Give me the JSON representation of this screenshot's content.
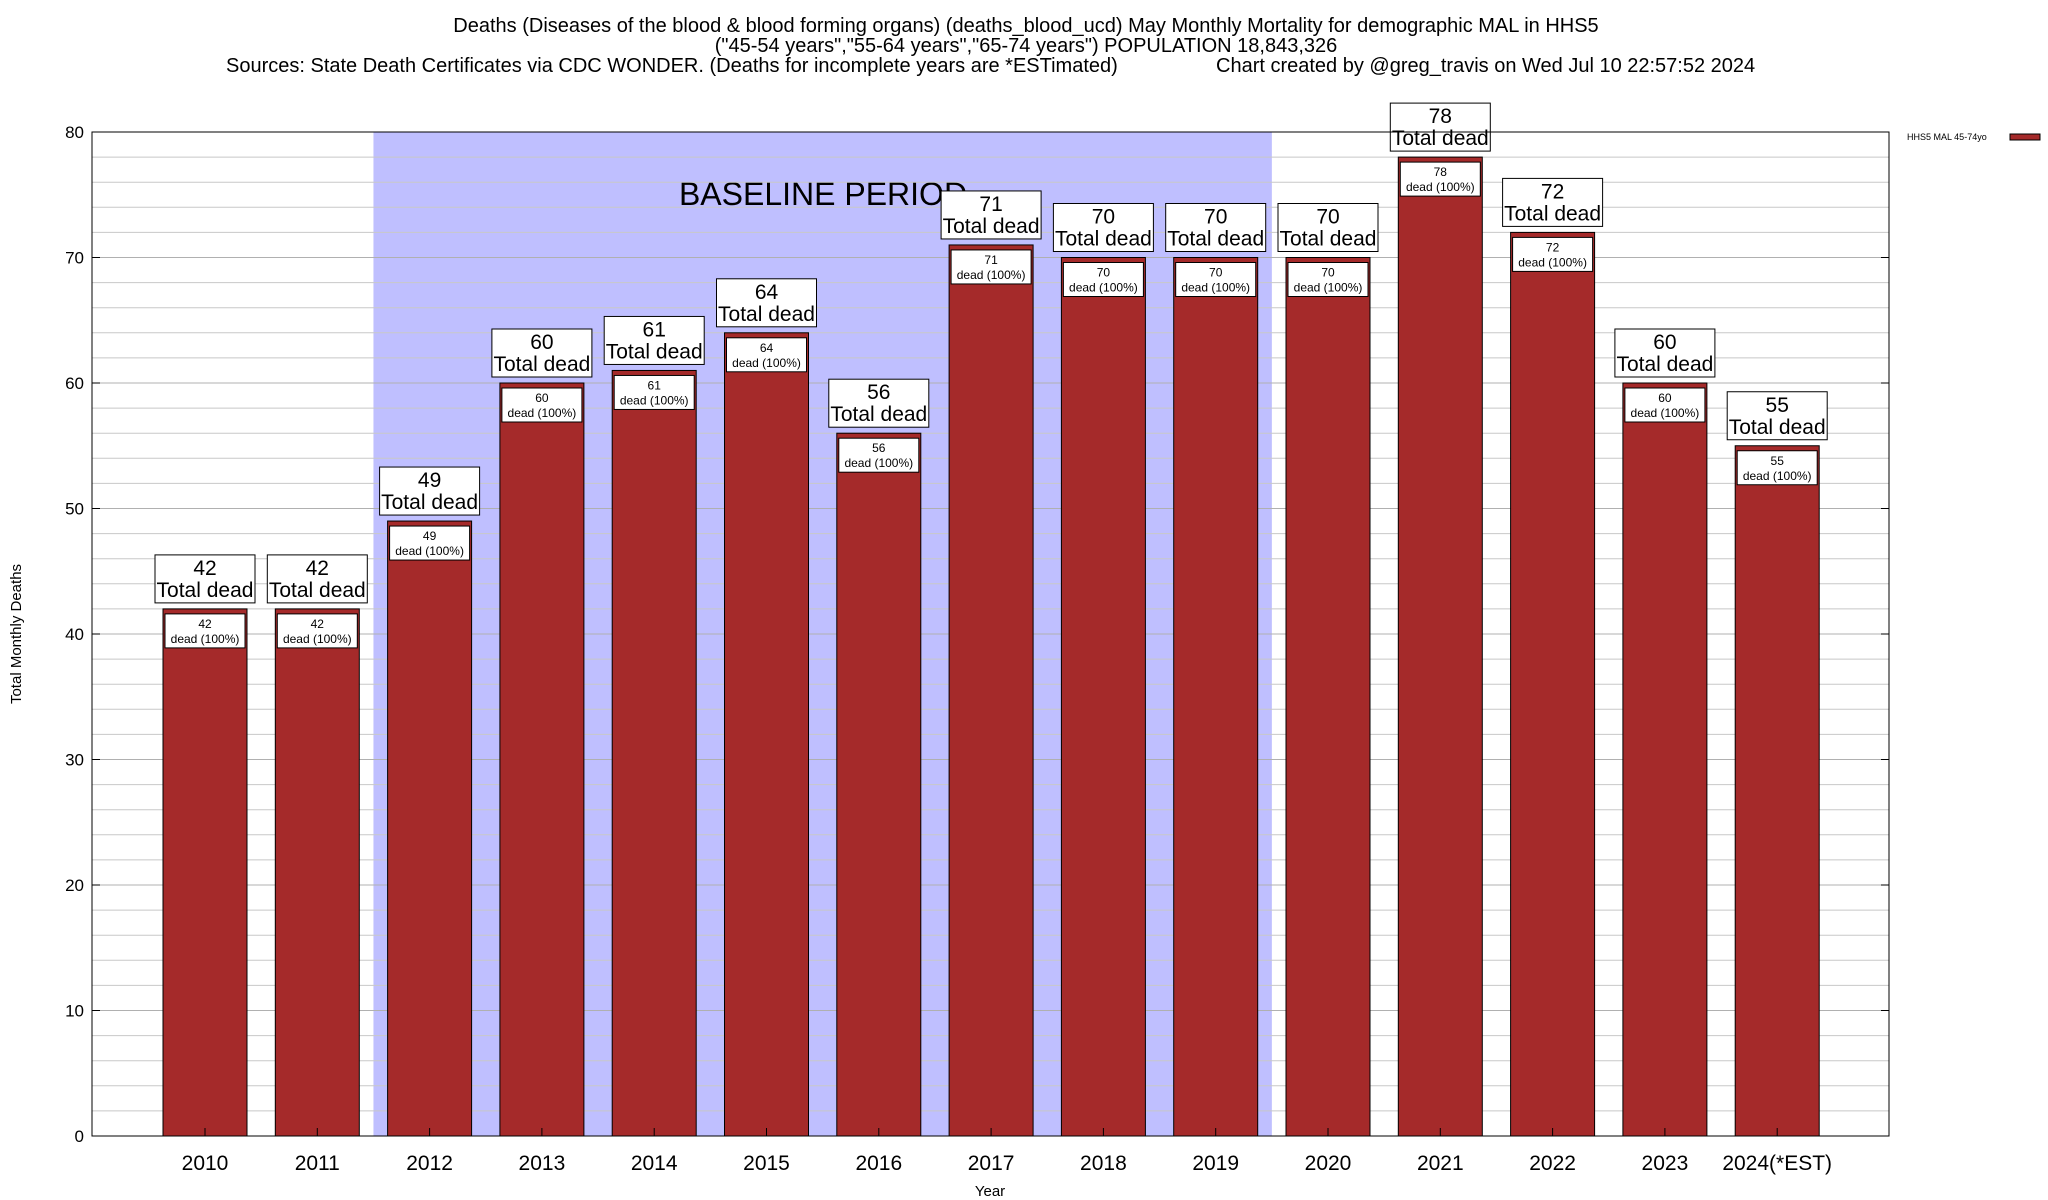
{
  "colors": {
    "bar": "#a52a2a",
    "baseline_shade": "#bfbfff",
    "grid": "#c8c8c8"
  },
  "chart_data": {
    "type": "bar",
    "title_lines": [
      "Deaths (Diseases of the blood & blood forming organs) (deaths_blood_ucd) May Monthly Mortality for demographic MAL in HHS5",
      "(\"45-54 years\",\"55-64 years\",\"65-74 years\") POPULATION 18,843,326"
    ],
    "sources": "Sources: State Death Certificates via CDC WONDER. (Deaths for incomplete years are *ESTimated)",
    "credit": "Chart created by @greg_travis on Wed Jul 10 22:57:52 2024",
    "xlabel": "Year",
    "ylabel": "Total Monthly Deaths",
    "ylim": [
      0,
      80
    ],
    "yticks": [
      0,
      10,
      20,
      30,
      40,
      50,
      60,
      70,
      80
    ],
    "categories": [
      "2010",
      "2011",
      "2012",
      "2013",
      "2014",
      "2015",
      "2016",
      "2017",
      "2018",
      "2019",
      "2020",
      "2021",
      "2022",
      "2023",
      "2024(*EST)"
    ],
    "series": [
      {
        "name": "HHS5 MAL 45-74yo",
        "values": [
          42,
          42,
          49,
          60,
          61,
          64,
          56,
          71,
          70,
          70,
          70,
          78,
          72,
          60,
          55
        ]
      }
    ],
    "total_label": "Total dead",
    "inner_label": "dead (100%)",
    "baseline": {
      "label": "BASELINE PERIOD",
      "start_category": "2012",
      "end_category": "2019"
    },
    "legend_position": "top-right",
    "grid": true
  }
}
